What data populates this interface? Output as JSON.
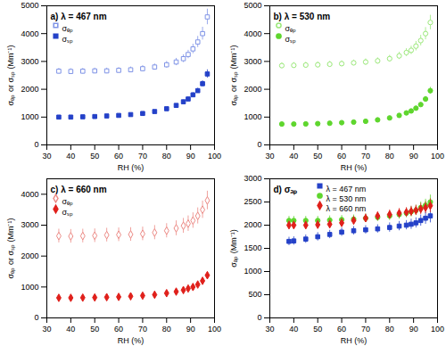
{
  "chart_data": [
    {
      "type": "scatter",
      "title": "a) λ = 467 nm",
      "x_label": "RH (%)",
      "y_label": "σₑₚ or σₛₚ (Mm⁻¹)",
      "xlim": [
        30,
        100
      ],
      "xticks": [
        30,
        40,
        50,
        60,
        70,
        80,
        90,
        100
      ],
      "ylim": [
        0,
        5000
      ],
      "yticks": [
        0,
        1000,
        2000,
        3000,
        4000,
        5000
      ],
      "legend": "top-left",
      "x": [
        35,
        40,
        45,
        50,
        55,
        60,
        65,
        70,
        75,
        80,
        84,
        87,
        89,
        91,
        93,
        95,
        97
      ],
      "series": [
        {
          "name": "σₑₚ",
          "color": "#7f93e6",
          "marker": "square-open",
          "values": [
            2650,
            2640,
            2650,
            2660,
            2660,
            2680,
            2700,
            2740,
            2800,
            2880,
            2980,
            3100,
            3250,
            3450,
            3700,
            4000,
            4600
          ],
          "errors": [
            100,
            100,
            100,
            100,
            100,
            100,
            100,
            110,
            110,
            120,
            130,
            140,
            150,
            170,
            200,
            230,
            280
          ]
        },
        {
          "name": "σₛₚ",
          "color": "#2441c8",
          "marker": "square",
          "values": [
            1000,
            1000,
            1010,
            1020,
            1040,
            1060,
            1090,
            1130,
            1200,
            1300,
            1420,
            1550,
            1650,
            1800,
            1950,
            2200,
            2550
          ],
          "errors": [
            30,
            30,
            30,
            30,
            30,
            30,
            35,
            35,
            40,
            45,
            50,
            60,
            70,
            80,
            90,
            110,
            150
          ]
        }
      ]
    },
    {
      "type": "scatter",
      "title": "b) λ = 530 nm",
      "x_label": "RH (%)",
      "y_label": "σₑₚ or σₛₚ (Mm⁻¹)",
      "xlim": [
        30,
        100
      ],
      "xticks": [
        30,
        40,
        50,
        60,
        70,
        80,
        90,
        100
      ],
      "ylim": [
        0,
        5000
      ],
      "yticks": [
        0,
        1000,
        2000,
        3000,
        4000,
        5000
      ],
      "legend": "top-left",
      "x": [
        35,
        40,
        45,
        50,
        55,
        60,
        65,
        70,
        75,
        80,
        84,
        87,
        89,
        91,
        93,
        95,
        97
      ],
      "series": [
        {
          "name": "σₑₚ",
          "color": "#9be87a",
          "marker": "circle-open",
          "values": [
            2850,
            2860,
            2870,
            2880,
            2900,
            2920,
            2950,
            2980,
            3020,
            3100,
            3200,
            3320,
            3400,
            3550,
            3750,
            4000,
            4400
          ],
          "errors": [
            100,
            100,
            100,
            100,
            100,
            100,
            100,
            110,
            110,
            120,
            130,
            140,
            150,
            170,
            190,
            220,
            260
          ]
        },
        {
          "name": "σₛₚ",
          "color": "#5fd62e",
          "marker": "circle",
          "values": [
            750,
            750,
            755,
            765,
            780,
            800,
            820,
            850,
            900,
            970,
            1060,
            1150,
            1220,
            1320,
            1450,
            1650,
            1950
          ],
          "errors": [
            25,
            25,
            25,
            25,
            25,
            25,
            30,
            30,
            35,
            40,
            45,
            50,
            55,
            60,
            70,
            90,
            120
          ]
        }
      ]
    },
    {
      "type": "scatter",
      "title": "c) λ = 660 nm",
      "x_label": "RH (%)",
      "y_label": "σₑₚ or σₛₚ (Mm⁻¹)",
      "xlim": [
        30,
        100
      ],
      "xticks": [
        30,
        40,
        50,
        60,
        70,
        80,
        90,
        100
      ],
      "ylim": [
        0,
        4500
      ],
      "yticks": [
        0,
        1000,
        2000,
        3000,
        4000
      ],
      "legend": "top-left",
      "x": [
        35,
        40,
        45,
        50,
        55,
        60,
        65,
        70,
        75,
        80,
        84,
        87,
        89,
        91,
        93,
        95,
        97
      ],
      "series": [
        {
          "name": "σₑₚ",
          "color": "#ec8a85",
          "marker": "diamond-open",
          "values": [
            2650,
            2640,
            2650,
            2660,
            2680,
            2690,
            2700,
            2720,
            2760,
            2820,
            2900,
            2980,
            3050,
            3150,
            3300,
            3500,
            3800
          ],
          "errors": [
            220,
            220,
            220,
            220,
            220,
            220,
            220,
            220,
            230,
            230,
            240,
            240,
            250,
            250,
            260,
            280,
            300
          ]
        },
        {
          "name": "σₛₚ",
          "color": "#e0201b",
          "marker": "diamond",
          "values": [
            650,
            650,
            655,
            660,
            670,
            680,
            700,
            720,
            750,
            800,
            850,
            900,
            950,
            1000,
            1080,
            1200,
            1380
          ],
          "errors": [
            25,
            25,
            25,
            25,
            25,
            25,
            25,
            30,
            30,
            35,
            40,
            45,
            50,
            55,
            60,
            70,
            100
          ]
        }
      ]
    },
    {
      "type": "scatter",
      "title": "d) σₐₚ",
      "x_label": "RH (%)",
      "y_label": "σₐₚ (Mm⁻¹)",
      "xlim": [
        30,
        100
      ],
      "xticks": [
        30,
        40,
        50,
        60,
        70,
        80,
        90,
        100
      ],
      "ylim": [
        0,
        3000
      ],
      "yticks": [
        0,
        500,
        1000,
        1500,
        2000,
        2500,
        3000
      ],
      "legend": "top-left",
      "x": [
        38,
        40,
        45,
        50,
        55,
        60,
        65,
        70,
        75,
        80,
        84,
        87,
        89,
        91,
        93,
        95,
        97
      ],
      "series": [
        {
          "name": "λ = 467 nm",
          "color": "#2441c8",
          "marker": "square",
          "values": [
            1650,
            1660,
            1700,
            1750,
            1800,
            1850,
            1880,
            1900,
            1920,
            1950,
            1980,
            2000,
            2020,
            2050,
            2100,
            2150,
            2200
          ],
          "errors": [
            90,
            90,
            90,
            90,
            90,
            90,
            90,
            90,
            90,
            100,
            100,
            100,
            110,
            110,
            120,
            130,
            150
          ]
        },
        {
          "name": "λ = 530 nm",
          "color": "#5fd62e",
          "marker": "circle",
          "values": [
            2100,
            2100,
            2100,
            2100,
            2110,
            2120,
            2130,
            2150,
            2170,
            2200,
            2230,
            2260,
            2290,
            2320,
            2380,
            2430,
            2500
          ],
          "errors": [
            90,
            90,
            90,
            90,
            90,
            90,
            90,
            90,
            90,
            100,
            100,
            100,
            110,
            110,
            120,
            130,
            150
          ]
        },
        {
          "name": "λ = 660 nm",
          "color": "#e0201b",
          "marker": "diamond",
          "values": [
            2000,
            2000,
            2000,
            2010,
            2020,
            2050,
            2100,
            2150,
            2200,
            2230,
            2260,
            2280,
            2300,
            2320,
            2350,
            2380,
            2420
          ],
          "errors": [
            90,
            90,
            90,
            90,
            90,
            90,
            90,
            90,
            90,
            100,
            100,
            100,
            110,
            110,
            120,
            130,
            150
          ]
        }
      ]
    }
  ]
}
